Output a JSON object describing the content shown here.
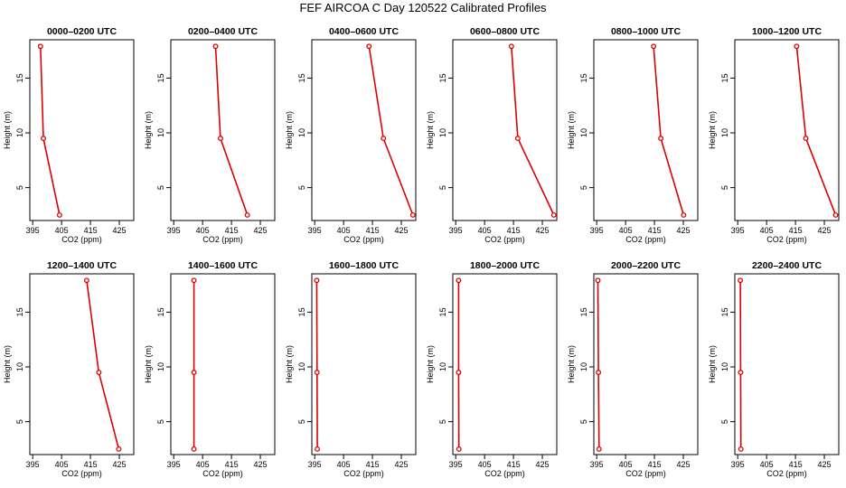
{
  "title": "FEF AIRCOA C  Day 120522  Calibrated Profiles",
  "chart_data": {
    "type": "line",
    "layout": "2 rows x 6 columns of profile panels",
    "xlabel": "CO2 (ppm)",
    "ylabel": "Height (m)",
    "xlim": [
      394,
      430
    ],
    "ylim": [
      2,
      18.5
    ],
    "xticks": [
      395,
      405,
      415,
      425
    ],
    "yticks": [
      5,
      10,
      15
    ],
    "heights": [
      2.5,
      9.5,
      17.9
    ],
    "line_color": "#dd0000",
    "marker": "open-circle",
    "panels": [
      {
        "title": "0000–0200 UTC",
        "co2": [
          404.3,
          398.7,
          397.7
        ]
      },
      {
        "title": "0200–0400 UTC",
        "co2": [
          420.5,
          411.2,
          409.5
        ]
      },
      {
        "title": "0400–0600 UTC",
        "co2": [
          429.0,
          418.8,
          413.8
        ]
      },
      {
        "title": "0600–0800 UTC",
        "co2": [
          429.0,
          416.5,
          414.3
        ]
      },
      {
        "title": "0800–1000 UTC",
        "co2": [
          425.1,
          417.2,
          414.7
        ]
      },
      {
        "title": "1000–1200 UTC",
        "co2": [
          428.9,
          418.6,
          415.4
        ]
      },
      {
        "title": "1200–1400 UTC",
        "co2": [
          424.8,
          417.9,
          413.7
        ]
      },
      {
        "title": "1400–1600 UTC",
        "co2": [
          402.0,
          402.0,
          402.0
        ]
      },
      {
        "title": "1600–1800 UTC",
        "co2": [
          395.9,
          395.8,
          395.7
        ]
      },
      {
        "title": "1800–2000 UTC",
        "co2": [
          396.1,
          396.0,
          396.0
        ]
      },
      {
        "title": "2000–2200 UTC",
        "co2": [
          395.8,
          395.6,
          395.4
        ]
      },
      {
        "title": "2200–2400 UTC",
        "co2": [
          396.1,
          396.0,
          395.9
        ]
      }
    ]
  }
}
